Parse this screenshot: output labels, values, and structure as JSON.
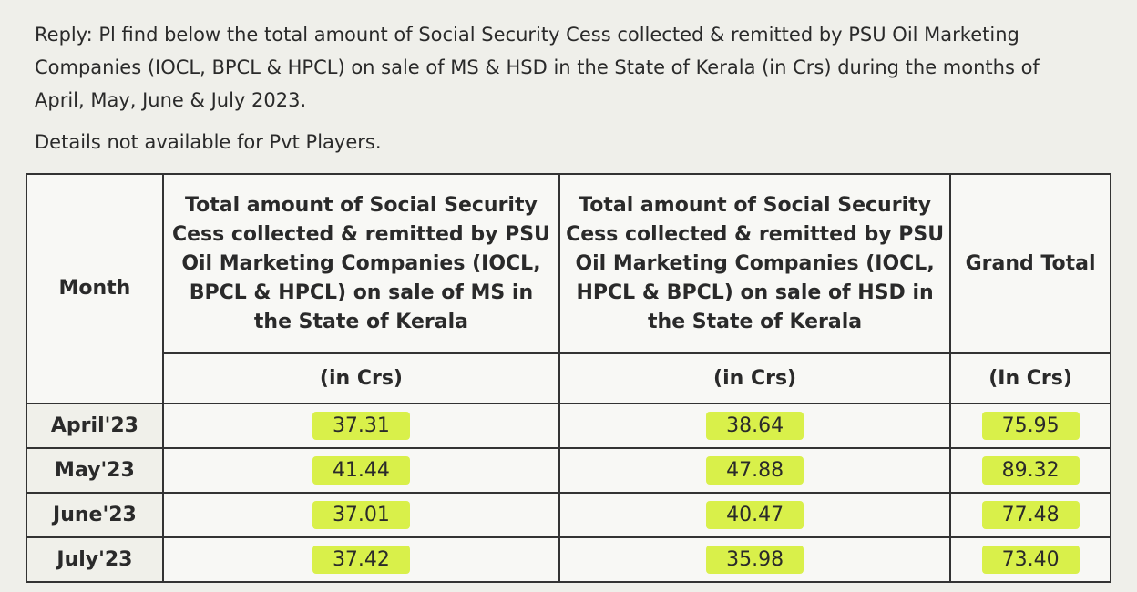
{
  "reply": "Reply: Pl find below the total amount of Social Security Cess collected & remitted by PSU Oil Marketing Companies (IOCL, BPCL & HPCL) on sale of MS & HSD in the State of Kerala (in Crs) during the months of April, May, June & July 2023.",
  "note": "Details not available for Pvt Players.",
  "table": {
    "headers": [
      "Month",
      "Total amount of Social Security Cess collected & remitted by PSU Oil Marketing Companies (IOCL, BPCL & HPCL) on sale of MS in the State of Kerala",
      "Total amount of Social Security Cess collected & remitted by PSU Oil Marketing Companies (IOCL, HPCL & BPCL) on sale of HSD in the State of Kerala",
      "Grand Total"
    ],
    "units": [
      "(in Crs)",
      "(in Crs)",
      "(In Crs)"
    ],
    "rows": [
      [
        "April'23",
        "37.31",
        "38.64",
        "75.95"
      ],
      [
        "May'23",
        "41.44",
        "47.88",
        "89.32"
      ],
      [
        "June'23",
        "37.01",
        "40.47",
        "77.48"
      ],
      [
        "July'23",
        "37.42",
        "35.98",
        "73.40"
      ]
    ]
  }
}
